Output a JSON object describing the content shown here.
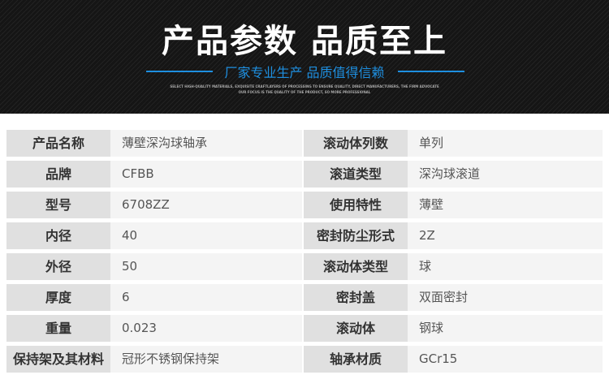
{
  "header": {
    "title": "产品参数 品质至上",
    "subtitle": "厂家专业生产  品质值得信赖",
    "en_line1": "SELECT HIGH-QUALITY MATERIALS, EXQUISITE CRAFTLAYERS OF PROCESSING TO ENSURE QUALITY, DIRECT MANUFACTURERS, THE FIRM ADVOCATE",
    "en_line2": "OUR FOCUS IS THE QUALITY OF THE PRODUCT, SO MORE PROFESSIONAL",
    "accent": "#1e8fe0"
  },
  "rows": [
    {
      "l1": "产品名称",
      "v1": "薄壁深沟球轴承",
      "l2": "滚动体列数",
      "v2": "单列"
    },
    {
      "l1": "品牌",
      "v1": "CFBB",
      "l2": "滚道类型",
      "v2": "深沟球滚道"
    },
    {
      "l1": "型号",
      "v1": "6708ZZ",
      "l2": "使用特性",
      "v2": "薄壁"
    },
    {
      "l1": "内径",
      "v1": "40",
      "l2": "密封防尘形式",
      "v2": "2Z"
    },
    {
      "l1": "外径",
      "v1": "50",
      "l2": "滚动体类型",
      "v2": "球"
    },
    {
      "l1": "厚度",
      "v1": "6",
      "l2": "密封盖",
      "v2": "双面密封"
    },
    {
      "l1": "重量",
      "v1": "0.023",
      "l2": "滚动体",
      "v2": "钢球"
    },
    {
      "l1": "保持架及其材料",
      "v1": "冠形不锈钢保持架",
      "l2": "轴承材质",
      "v2": "GCr15"
    }
  ]
}
